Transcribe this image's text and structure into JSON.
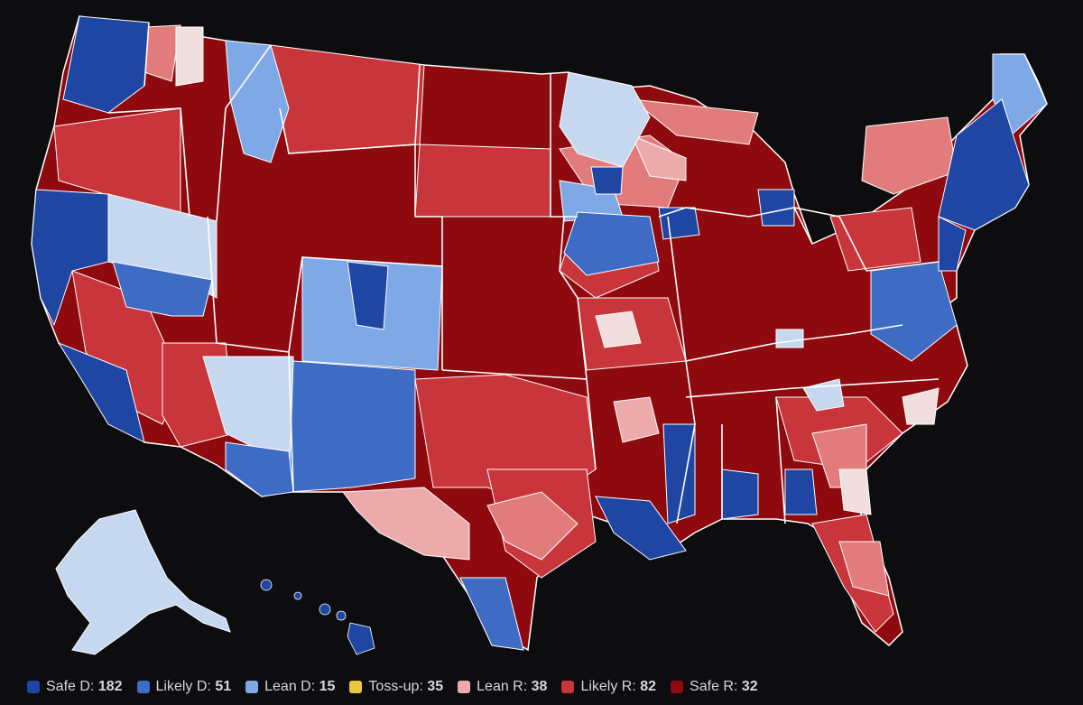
{
  "colors": {
    "background": "#0d0d10",
    "safe_d": "#1f46a3",
    "likely_d": "#3e6cc4",
    "lean_d": "#7fa8e6",
    "very_lean_d": "#c6d8ef",
    "tossup": "#e8c93a",
    "tilt_r": "#f1dede",
    "lean_r": "#ecaaaa",
    "lean_r2": "#e27c7c",
    "likely_r": "#c8353a",
    "safe_r": "#8e0a0e",
    "border": "#ffffff"
  },
  "legend": [
    {
      "label": "Safe D:",
      "count": "182",
      "color": "#1f46a3"
    },
    {
      "label": "Likely D:",
      "count": "51",
      "color": "#3e6cc4"
    },
    {
      "label": "Lean D:",
      "count": "15",
      "color": "#7fa8e6"
    },
    {
      "label": "Toss-up:",
      "count": "35",
      "color": "#e8c93a"
    },
    {
      "label": "Lean R:",
      "count": "38",
      "color": "#ecaaaa"
    },
    {
      "label": "Likely R:",
      "count": "82",
      "color": "#c8353a"
    },
    {
      "label": "Safe R:",
      "count": "32",
      "color": "#8e0a0e"
    }
  ]
}
